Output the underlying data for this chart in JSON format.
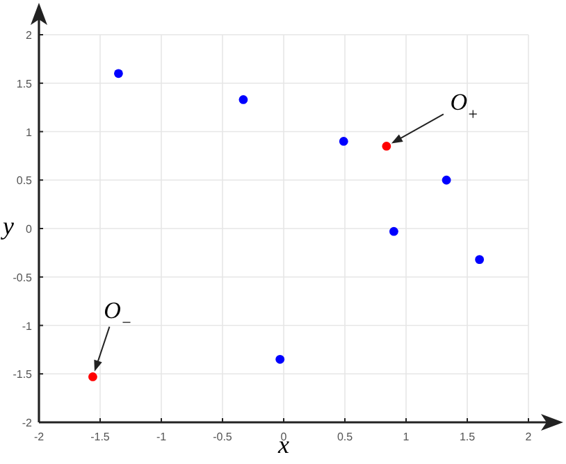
{
  "chart_data": {
    "type": "scatter",
    "xlabel": "x",
    "ylabel": "y",
    "xlim": [
      -2,
      2
    ],
    "ylim": [
      -2,
      2
    ],
    "xticks": [
      -2,
      -1.5,
      -1,
      -0.5,
      0,
      0.5,
      1,
      1.5,
      2
    ],
    "yticks": [
      -2,
      -1.5,
      -1,
      -0.5,
      0,
      0.5,
      1,
      1.5,
      2
    ],
    "grid": true,
    "marker": "circle",
    "series": [
      {
        "color": "#0000ff",
        "x": [
          -1.35,
          -0.33,
          0.49,
          1.33,
          0.9,
          1.6,
          -0.03
        ],
        "values": [
          1.6,
          1.33,
          0.9,
          0.5,
          -0.03,
          -0.32,
          -1.35
        ]
      },
      {
        "color": "#ff0000",
        "x": [
          0.84,
          -1.56
        ],
        "values": [
          0.85,
          -1.53
        ]
      }
    ],
    "annotations": [
      {
        "text": "O$_{+}$",
        "x": 0.84,
        "y": 0.85
      },
      {
        "text": "O$_{−}$",
        "x": -1.56,
        "y": -1.53
      }
    ]
  }
}
